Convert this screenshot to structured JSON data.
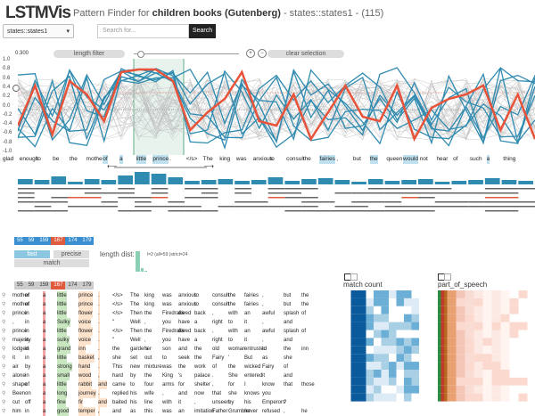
{
  "app": {
    "logo": "LSTMVis",
    "title_prefix": "Pattern Finder for",
    "dataset": "children books (Gutenberg)",
    "title_suffix": "- states::states1 - (115)"
  },
  "controls": {
    "state_select": "states::states1",
    "search_placeholder": "Search for...",
    "search_button": "Search",
    "length_filter": "length filter",
    "clear_selection": "clear selection",
    "threshold": "0.300",
    "zoom_in": "+",
    "zoom_out": "−"
  },
  "yaxis": [
    "1.0",
    "0.8",
    "0.6",
    "0.4",
    "0.2",
    "0.0",
    "-0.2",
    "-0.4",
    "-0.6",
    "-0.8",
    "-1.0"
  ],
  "words": [
    "glad",
    "enough",
    "to",
    "be",
    "the",
    "mother",
    "of",
    "a",
    "little",
    "prince",
    ".",
    "</s>",
    "The",
    "king",
    "was",
    "anxious",
    "to",
    "consult",
    "the",
    "fairies",
    ",",
    "but",
    "the",
    "queen",
    "would",
    "not",
    "hear",
    "of",
    "such",
    "a",
    "thing"
  ],
  "counts": {
    "row1": [
      "55",
      "59",
      "159",
      "167",
      "174",
      "179"
    ],
    "row2": [
      "55",
      "59",
      "159",
      "167",
      "174",
      "179"
    ],
    "colors": [
      "#3a8fd0",
      "#3a8fd0",
      "#3a8fd0",
      "#e05a3c",
      "#3a8fd0",
      "#3a8fd0"
    ],
    "colors2": [
      "#ccc",
      "#ccc",
      "#ccc",
      "#e05a3c",
      "#ccc",
      "#ccc"
    ]
  },
  "modes": {
    "fast": "fast",
    "precise": "precise",
    "match": "match"
  },
  "len_dist": {
    "label": "length dist:",
    "info": "l=2 (all=59 )strict=24"
  },
  "heatmaps": {
    "match_count": "match count",
    "part_of_speech": "part_of_speech"
  },
  "table_rows": [
    [
      "mother",
      "of",
      "a",
      "little",
      "prince",
      ".",
      "</s>",
      "The",
      "king",
      "was",
      "anxious",
      "to",
      "consult",
      "the",
      "fairies",
      ",",
      "but",
      "the"
    ],
    [
      "mother",
      "of",
      "a",
      "little",
      "prince",
      ".",
      "</s>",
      "The",
      "king",
      "was",
      "anxious",
      "to",
      "consult",
      "the",
      "fairies",
      ",",
      "but",
      "the"
    ],
    [
      "prince",
      "in",
      "a",
      "little",
      "flower",
      ".",
      "</s>",
      "Then",
      "the",
      "Firedrake",
      "dived",
      "back",
      ",",
      "with",
      "an",
      "awful",
      "splash",
      "of"
    ],
    [
      ",",
      "in",
      "a",
      "Sulky",
      "voice",
      ".",
      "\"",
      "Well",
      ",",
      "you",
      "have",
      "a",
      "right",
      "to",
      "it",
      ",",
      "and",
      ""
    ],
    [
      "prince",
      "in",
      "a",
      "little",
      "flower",
      ".",
      "</s>",
      "Then",
      "the",
      "Firedrake",
      "dived",
      "back",
      ",",
      "with",
      "an",
      "awful",
      "splash",
      "of"
    ],
    [
      "majesty",
      "in",
      "a",
      "sulky",
      "voice",
      ".",
      "\"",
      "Well",
      ",",
      "you",
      "have",
      "a",
      "right",
      "to",
      "it",
      ",",
      "and",
      ""
    ],
    [
      "lodged",
      "in",
      "a",
      "grand",
      "inn",
      ".",
      "the",
      "gardener",
      "'s",
      "son",
      "and",
      "the",
      "old",
      "woman",
      "entrusted",
      "to",
      "the",
      "inn"
    ],
    [
      "it",
      "in",
      "a",
      "little",
      "basket",
      ",",
      "she",
      "set",
      "out",
      "to",
      "seek",
      "the",
      "Fairy",
      "'",
      "But",
      "as",
      "she",
      ""
    ],
    [
      "air",
      "by",
      "a",
      "strong",
      "hand",
      ".",
      "This",
      "new",
      "mixture",
      "was",
      "the",
      "work",
      "of",
      "the",
      "wicked",
      "Fairy",
      "of",
      ""
    ],
    [
      "alone",
      "in",
      "a",
      "small",
      "wood",
      ",",
      "hard",
      "by",
      "the",
      "King",
      "'s",
      "palace",
      ".",
      "She",
      "entered",
      "it",
      "and",
      ""
    ],
    [
      "shape",
      "of",
      "a",
      "little",
      "rabbit",
      "and",
      "came",
      "to",
      "four",
      "arms",
      "for",
      "shelter",
      ",",
      "for",
      "I",
      "know",
      "that",
      "those"
    ],
    [
      "Been",
      "on",
      "a",
      "long",
      "journey",
      ".",
      "replied",
      "his",
      "wife",
      ",",
      "and",
      "now",
      "that",
      "she",
      "knows",
      "you",
      ""
    ],
    [
      "cut",
      "off",
      "a",
      "fine",
      "fir",
      "and",
      "baited",
      "his",
      "line",
      "with",
      "it",
      ",",
      "unseen",
      "by",
      "his",
      "Emperors",
      "?",
      ""
    ],
    [
      "him",
      "in",
      "a",
      "good",
      "temper",
      ",",
      "and",
      "as",
      "this",
      "was",
      "an",
      "imitation",
      "Father",
      "Grumbler",
      "never",
      "refused",
      ",",
      "he"
    ]
  ]
}
